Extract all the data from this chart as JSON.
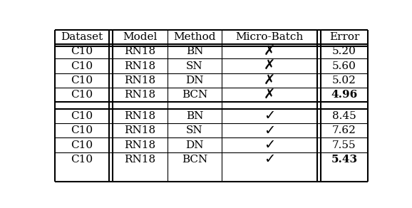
{
  "headers": [
    "Dataset",
    "Model",
    "Method",
    "Micro-Batch",
    "Error"
  ],
  "rows": [
    [
      "C10",
      "RN18",
      "BN",
      "✗",
      "5.20"
    ],
    [
      "C10",
      "RN18",
      "SN",
      "✗",
      "5.60"
    ],
    [
      "C10",
      "RN18",
      "DN",
      "✗",
      "5.02"
    ],
    [
      "C10",
      "RN18",
      "BCN",
      "✗",
      "4.96"
    ]
  ],
  "rows2": [
    [
      "C10",
      "RN18",
      "BN",
      "✓",
      "8.45"
    ],
    [
      "C10",
      "RN18",
      "SN",
      "✓",
      "7.62"
    ],
    [
      "C10",
      "RN18",
      "DN",
      "✓",
      "7.55"
    ],
    [
      "C10",
      "RN18",
      "BCN",
      "✓",
      "5.43"
    ]
  ],
  "bold_last": [
    3,
    3
  ],
  "figsize": [
    5.78,
    2.92
  ],
  "dpi": 100,
  "font_size": 11
}
